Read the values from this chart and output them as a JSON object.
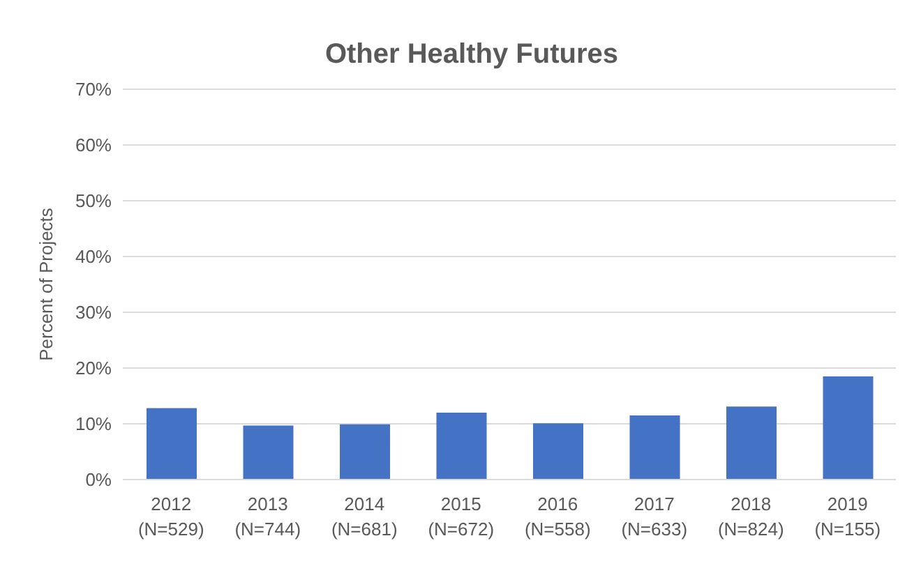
{
  "chart_data": {
    "type": "bar",
    "title": "Other Healthy Futures",
    "ylabel": "Percent of Projects",
    "categories": [
      "2012\n(N=529)",
      "2013\n(N=744)",
      "2014\n(N=681)",
      "2015\n(N=672)",
      "2016\n(N=558)",
      "2017\n(N=633)",
      "2018\n(N=824)",
      "2019\n(N=155)"
    ],
    "values": [
      12.8,
      9.7,
      9.9,
      12.0,
      10.1,
      11.5,
      13.1,
      18.5
    ],
    "color": "#4472c4",
    "ylim": [
      0,
      70
    ],
    "yticks": [
      {
        "value": 0,
        "label": "0%"
      },
      {
        "value": 10,
        "label": "10%"
      },
      {
        "value": 20,
        "label": "20%"
      },
      {
        "value": 30,
        "label": "30%"
      },
      {
        "value": 40,
        "label": "40%"
      },
      {
        "value": 50,
        "label": "50%"
      },
      {
        "value": 60,
        "label": "60%"
      },
      {
        "value": 70,
        "label": "70%"
      }
    ],
    "grid": "y",
    "legend": false
  }
}
